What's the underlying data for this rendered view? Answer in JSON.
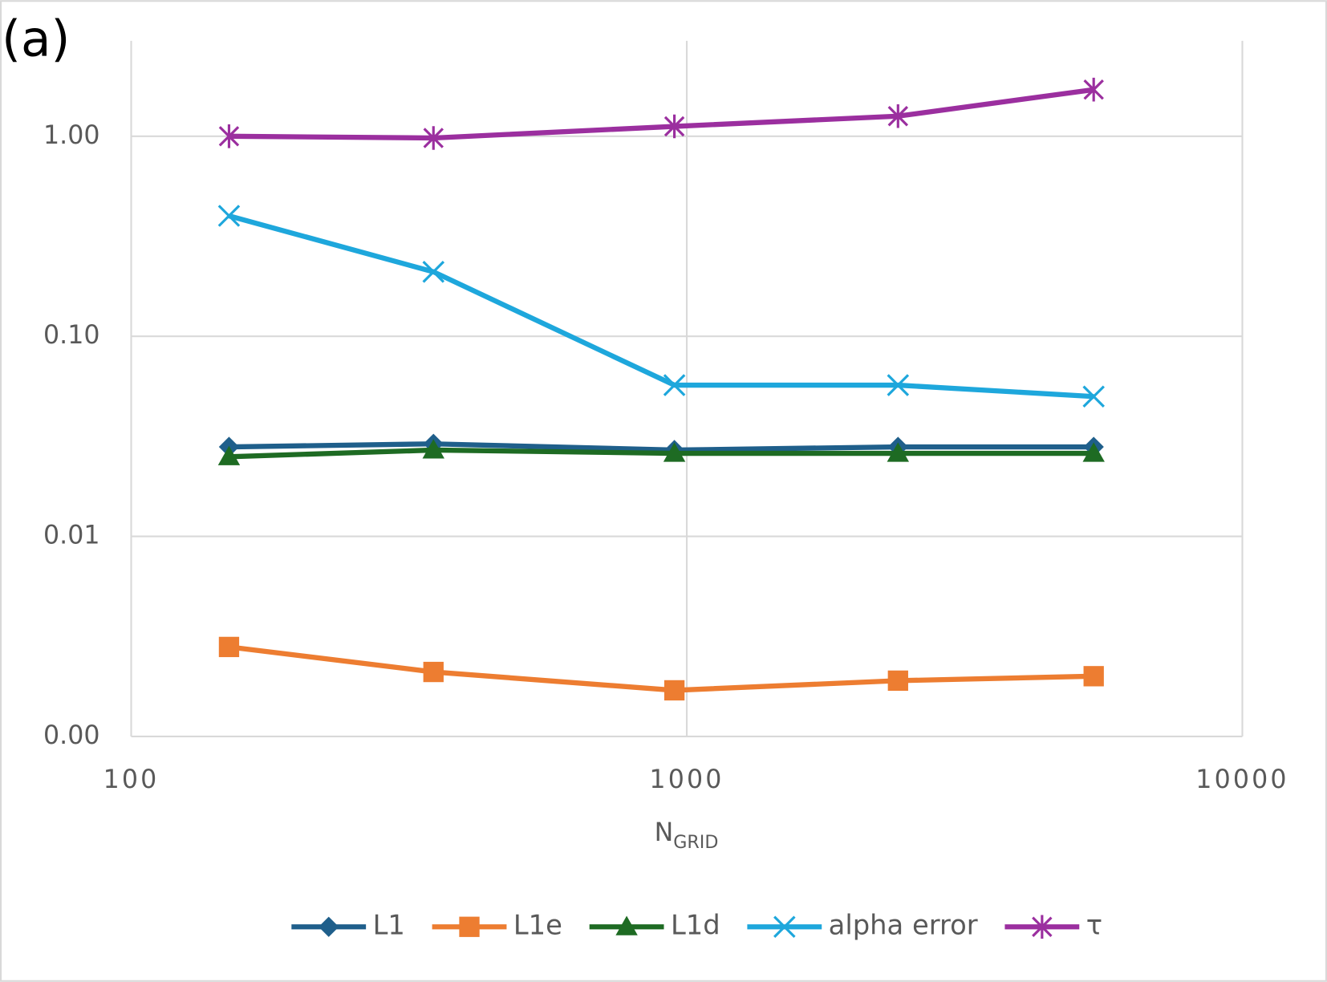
{
  "chart_data": {
    "type": "line",
    "annotation": "(a)",
    "xlabel": "N",
    "xlabel_sub": "GRID",
    "x": [
      150,
      350,
      950,
      2400,
      5400
    ],
    "xlog": true,
    "ylog": true,
    "grid": true,
    "legend": "bottom",
    "xlim": [
      100,
      10000
    ],
    "xticks": [
      100,
      1000,
      10000
    ],
    "ylim": [
      0.001,
      3.0
    ],
    "yticks": [
      {
        "value": 0.001,
        "label": "0.00"
      },
      {
        "value": 0.01,
        "label": "0.01"
      },
      {
        "value": 0.1,
        "label": "0.10"
      },
      {
        "value": 1,
        "label": "1.00"
      }
    ],
    "series": [
      {
        "name": "L1",
        "color": "#1f5f8b",
        "marker": "diamond",
        "values": [
          0.028,
          0.029,
          0.027,
          0.028,
          0.028
        ]
      },
      {
        "name": "L1e",
        "color": "#ed7d31",
        "marker": "square",
        "values": [
          0.0028,
          0.0021,
          0.0017,
          0.0019,
          0.002
        ]
      },
      {
        "name": "L1d",
        "color": "#1e6b23",
        "marker": "triangle",
        "values": [
          0.025,
          0.027,
          0.026,
          0.026,
          0.026
        ]
      },
      {
        "name": "alpha error",
        "color": "#1ea7dc",
        "marker": "x",
        "values": [
          0.4,
          0.21,
          0.057,
          0.057,
          0.05
        ]
      },
      {
        "name": "τ",
        "color": "#9b2f9f",
        "marker": "star",
        "values": [
          1.0,
          0.98,
          1.12,
          1.26,
          1.71
        ]
      }
    ]
  }
}
